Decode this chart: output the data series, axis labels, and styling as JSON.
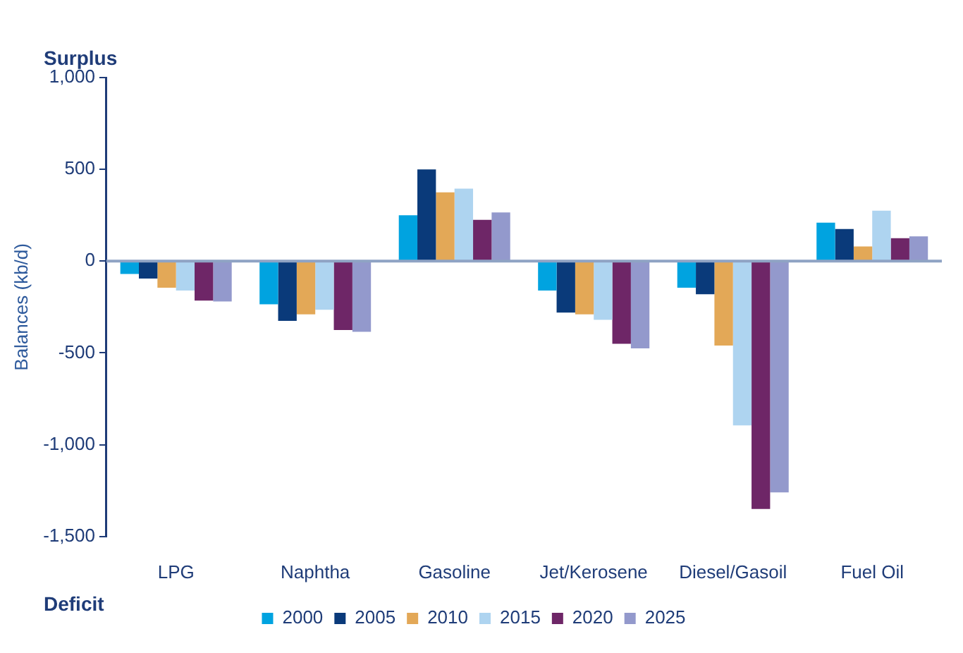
{
  "chart_data": {
    "type": "bar",
    "ylabel": "Balances (kb/d)",
    "annotations": [
      "Surplus",
      "Deficit"
    ],
    "categories": [
      "LPG",
      "Naphtha",
      "Gasoline",
      "Jet/Kerosene",
      "Diesel/Gasoil",
      "Fuel Oil"
    ],
    "series": [
      {
        "name": "2000",
        "color": "#00a3e0",
        "values": [
          -70,
          -235,
          250,
          -160,
          -145,
          210
        ]
      },
      {
        "name": "2005",
        "color": "#0a3a7a",
        "values": [
          -95,
          -325,
          500,
          -280,
          -180,
          175
        ]
      },
      {
        "name": "2010",
        "color": "#e3a857",
        "values": [
          -145,
          -290,
          375,
          -290,
          -460,
          80
        ]
      },
      {
        "name": "2015",
        "color": "#aed4f0",
        "values": [
          -160,
          -265,
          395,
          -320,
          -895,
          275
        ]
      },
      {
        "name": "2020",
        "color": "#6e2667",
        "values": [
          -215,
          -375,
          225,
          -450,
          -1350,
          125
        ]
      },
      {
        "name": "2025",
        "color": "#9399cc",
        "values": [
          -220,
          -385,
          265,
          -475,
          -1260,
          135
        ]
      }
    ],
    "ylim": [
      -1500,
      1000
    ],
    "yticks": [
      {
        "value": -1500,
        "label": "-1,500"
      },
      {
        "value": -1000,
        "label": "-1,000"
      },
      {
        "value": -500,
        "label": "-500"
      },
      0,
      500,
      {
        "value": 1000,
        "label": "1,000"
      }
    ],
    "ref_lines": [
      {
        "axis": "y",
        "value": 0,
        "color": "#8fa3c4"
      }
    ],
    "legend": "bottom"
  }
}
